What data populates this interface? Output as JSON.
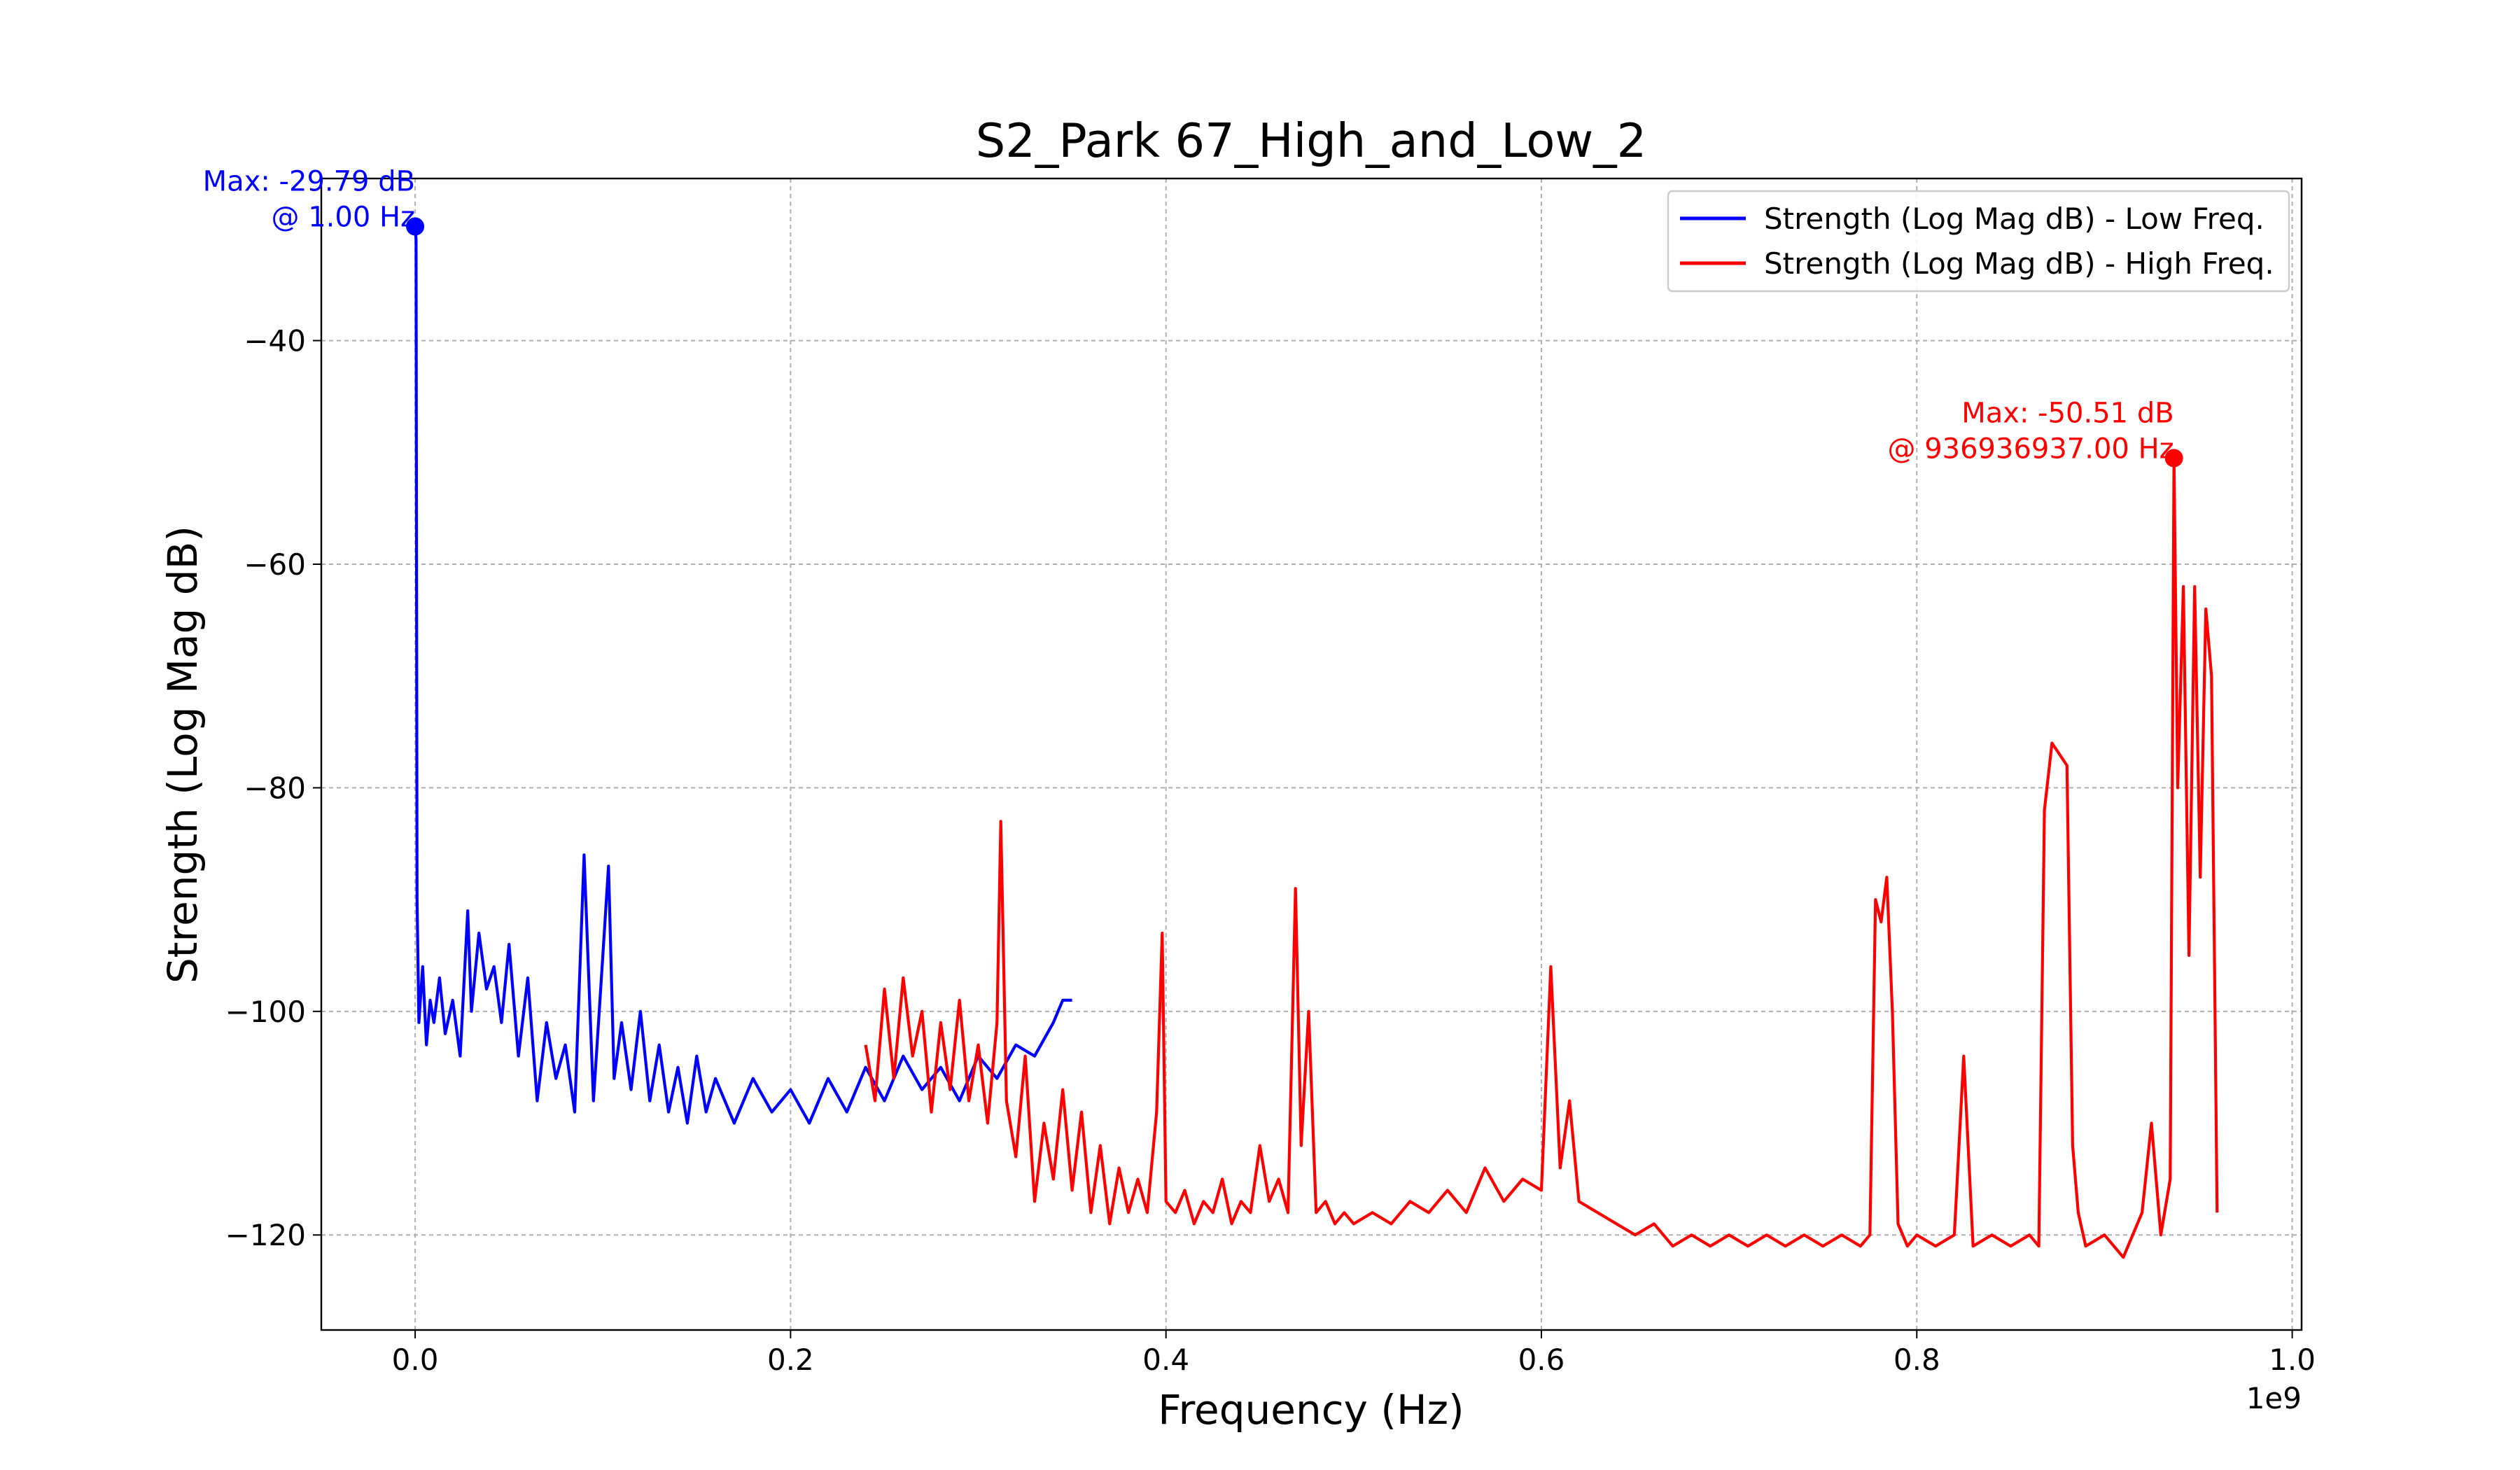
{
  "chart_data": {
    "type": "line",
    "title": "S2_Park 67_High_and_Low_2",
    "xlabel": "Frequency (Hz)",
    "ylabel": "Strength (Log Mag dB)",
    "x_offset_label": "1e9",
    "x_scale": 1000000000,
    "xlim": [
      -0.05,
      1.005
    ],
    "ylim": [
      -128.5,
      -25.5
    ],
    "x_ticks": [
      0.0,
      0.2,
      0.4,
      0.6,
      0.8,
      1.0
    ],
    "x_tick_labels": [
      "0.0",
      "0.2",
      "0.4",
      "0.6",
      "0.8",
      "1.0"
    ],
    "y_ticks": [
      -40,
      -60,
      -80,
      -100,
      -120
    ],
    "y_tick_labels": [
      "−40",
      "−60",
      "−80",
      "−100",
      "−120"
    ],
    "grid": true,
    "legend_position": "top-right",
    "series": [
      {
        "name": "Strength (Log Mag dB) - Low Freq.",
        "color": "#0000ff",
        "x": [
          0.0,
          0.0005,
          0.001,
          0.002,
          0.004,
          0.006,
          0.008,
          0.01,
          0.013,
          0.016,
          0.02,
          0.024,
          0.028,
          0.03,
          0.034,
          0.038,
          0.042,
          0.046,
          0.05,
          0.055,
          0.06,
          0.065,
          0.07,
          0.075,
          0.08,
          0.085,
          0.09,
          0.095,
          0.1,
          0.103,
          0.106,
          0.11,
          0.115,
          0.12,
          0.125,
          0.13,
          0.135,
          0.14,
          0.145,
          0.15,
          0.155,
          0.16,
          0.17,
          0.18,
          0.19,
          0.2,
          0.21,
          0.22,
          0.23,
          0.24,
          0.25,
          0.26,
          0.27,
          0.28,
          0.29,
          0.3,
          0.31,
          0.32,
          0.33,
          0.34,
          0.345,
          0.35
        ],
        "y": [
          -29.79,
          -31,
          -90,
          -101,
          -96,
          -103,
          -99,
          -101,
          -97,
          -102,
          -99,
          -104,
          -91,
          -100,
          -93,
          -98,
          -96,
          -101,
          -94,
          -104,
          -97,
          -108,
          -101,
          -106,
          -103,
          -109,
          -86,
          -108,
          -95,
          -87,
          -106,
          -101,
          -107,
          -100,
          -108,
          -103,
          -109,
          -105,
          -110,
          -104,
          -109,
          -106,
          -110,
          -106,
          -109,
          -107,
          -110,
          -106,
          -109,
          -105,
          -108,
          -104,
          -107,
          -105,
          -108,
          -104,
          -106,
          -103,
          -104,
          -101,
          -99,
          -99
        ]
      },
      {
        "name": "Strength (Log Mag dB) - High Freq.",
        "color": "#ff0000",
        "x": [
          0.24,
          0.245,
          0.25,
          0.255,
          0.26,
          0.265,
          0.27,
          0.275,
          0.28,
          0.285,
          0.29,
          0.295,
          0.3,
          0.305,
          0.31,
          0.312,
          0.315,
          0.32,
          0.325,
          0.33,
          0.335,
          0.34,
          0.345,
          0.35,
          0.355,
          0.36,
          0.365,
          0.37,
          0.375,
          0.38,
          0.385,
          0.39,
          0.395,
          0.398,
          0.4,
          0.405,
          0.41,
          0.415,
          0.42,
          0.425,
          0.43,
          0.435,
          0.44,
          0.445,
          0.45,
          0.455,
          0.46,
          0.465,
          0.469,
          0.472,
          0.476,
          0.48,
          0.485,
          0.49,
          0.495,
          0.5,
          0.51,
          0.52,
          0.53,
          0.54,
          0.55,
          0.56,
          0.57,
          0.58,
          0.59,
          0.6,
          0.605,
          0.61,
          0.615,
          0.62,
          0.63,
          0.64,
          0.65,
          0.66,
          0.67,
          0.68,
          0.69,
          0.7,
          0.71,
          0.72,
          0.73,
          0.74,
          0.75,
          0.76,
          0.77,
          0.775,
          0.778,
          0.781,
          0.784,
          0.787,
          0.79,
          0.795,
          0.8,
          0.81,
          0.82,
          0.825,
          0.83,
          0.84,
          0.85,
          0.86,
          0.865,
          0.868,
          0.872,
          0.876,
          0.88,
          0.883,
          0.886,
          0.89,
          0.9,
          0.91,
          0.92,
          0.925,
          0.93,
          0.935,
          0.937,
          0.939,
          0.942,
          0.945,
          0.948,
          0.951,
          0.954,
          0.957,
          0.96
        ],
        "y": [
          -103,
          -108,
          -98,
          -106,
          -97,
          -104,
          -100,
          -109,
          -101,
          -107,
          -99,
          -108,
          -103,
          -110,
          -101,
          -83,
          -108,
          -113,
          -104,
          -117,
          -110,
          -115,
          -107,
          -116,
          -109,
          -118,
          -112,
          -119,
          -114,
          -118,
          -115,
          -118,
          -109,
          -93,
          -117,
          -118,
          -116,
          -119,
          -117,
          -118,
          -115,
          -119,
          -117,
          -118,
          -112,
          -117,
          -115,
          -118,
          -89,
          -112,
          -100,
          -118,
          -117,
          -119,
          -118,
          -119,
          -118,
          -119,
          -117,
          -118,
          -116,
          -118,
          -114,
          -117,
          -115,
          -116,
          -96,
          -114,
          -108,
          -117,
          -118,
          -119,
          -120,
          -119,
          -121,
          -120,
          -121,
          -120,
          -121,
          -120,
          -121,
          -120,
          -121,
          -120,
          -121,
          -120,
          -90,
          -92,
          -88,
          -100,
          -119,
          -121,
          -120,
          -121,
          -120,
          -104,
          -121,
          -120,
          -121,
          -120,
          -121,
          -82,
          -76,
          -77,
          -78,
          -112,
          -118,
          -121,
          -120,
          -122,
          -118,
          -110,
          -120,
          -115,
          -50.51,
          -80,
          -62,
          -95,
          -62,
          -88,
          -64,
          -70,
          -118
        ]
      }
    ],
    "annotations": [
      {
        "series": 0,
        "x": 0.0,
        "y": -29.79,
        "line1": "Max: -29.79 dB",
        "line2": "@ 1.00 Hz",
        "color": "#0000ff"
      },
      {
        "series": 1,
        "x": 0.937,
        "y": -50.51,
        "line1": "Max: -50.51 dB",
        "line2": "@ 936936937.00 Hz",
        "color": "#ff0000"
      }
    ]
  }
}
